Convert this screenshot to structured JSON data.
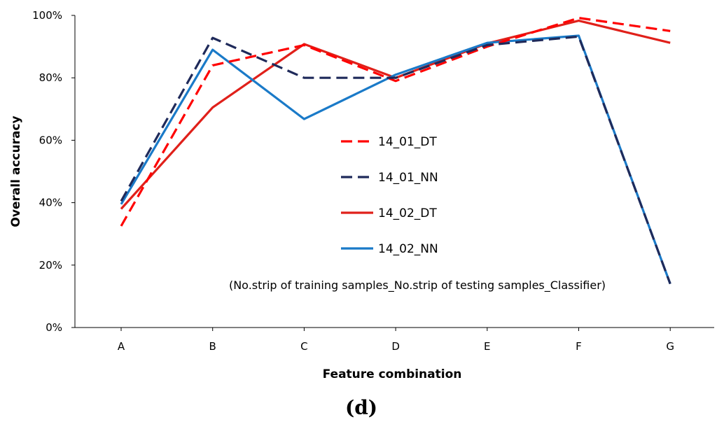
{
  "chart_data": {
    "type": "line",
    "title": "",
    "xlabel": "Feature combination",
    "ylabel": "Overall accuracy",
    "categories": [
      "A",
      "B",
      "C",
      "D",
      "E",
      "F",
      "G"
    ],
    "ylim": [
      0,
      100
    ],
    "yticks": [
      0,
      20,
      40,
      60,
      80,
      100
    ],
    "ytick_labels": [
      "0%",
      "20%",
      "40%",
      "60%",
      "80%",
      "100%"
    ],
    "grid": false,
    "legend_position": "center",
    "series": [
      {
        "name": "14_01_DT",
        "color": "#ff0000",
        "dash": "dashed",
        "values": [
          32.5,
          84,
          90.5,
          79,
          90,
          99.2,
          95
        ]
      },
      {
        "name": "14_01_NN",
        "color": "#1f2a5a",
        "dash": "dashed",
        "values": [
          40.5,
          92.8,
          80,
          80,
          90.5,
          93.2,
          14
        ]
      },
      {
        "name": "14_02_DT",
        "color": "#e0201a",
        "dash": "solid",
        "values": [
          38,
          70.5,
          90.8,
          80,
          91,
          98.3,
          91.2
        ]
      },
      {
        "name": "14_02_NN",
        "color": "#1a7ac8",
        "dash": "solid",
        "values": [
          39.5,
          89,
          66.8,
          81,
          91.2,
          93.5,
          14
        ]
      }
    ],
    "annotation": "(No.strip of training samples_No.strip of testing samples_Classifier)"
  },
  "panel_label": "(d)"
}
